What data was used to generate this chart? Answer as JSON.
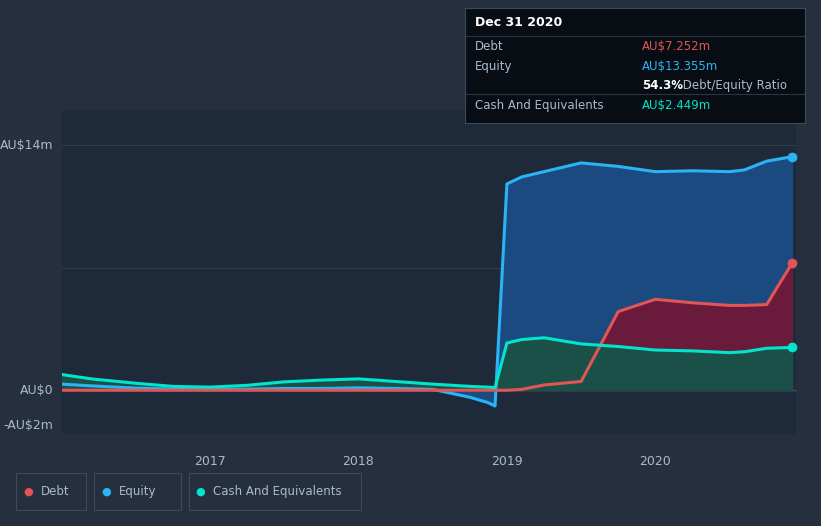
{
  "background_color": "#252f3e",
  "plot_bg_color": "#1e2a3a",
  "grid_color": "#3a4a5a",
  "x_ticks": [
    2017,
    2018,
    2019,
    2020
  ],
  "ylim": [
    -2.5,
    16
  ],
  "equity_color": "#2ab4f5",
  "debt_color": "#e05555",
  "cash_color": "#00e5cc",
  "equity_fill": "#1a4a80",
  "debt_fill": "#6a1a3a",
  "cash_fill": "#1a5048",
  "tooltip_bg": "#080d14",
  "tooltip_title": "Dec 31 2020",
  "tooltip_debt_label": "Debt",
  "tooltip_debt_value": "AU$7.252m",
  "tooltip_equity_label": "Equity",
  "tooltip_equity_value": "AU$13.355m",
  "tooltip_ratio_bold": "54.3%",
  "tooltip_ratio_rest": " Debt/Equity Ratio",
  "tooltip_cash_label": "Cash And Equivalents",
  "tooltip_cash_value": "AU$2.449m",
  "legend_debt": "Debt",
  "legend_equity": "Equity",
  "legend_cash": "Cash And Equivalents",
  "time": [
    2016.0,
    2016.2,
    2016.5,
    2016.75,
    2017.0,
    2017.25,
    2017.5,
    2017.75,
    2018.0,
    2018.25,
    2018.5,
    2018.75,
    2018.87,
    2018.92,
    2019.0,
    2019.1,
    2019.25,
    2019.5,
    2019.75,
    2020.0,
    2020.25,
    2020.5,
    2020.6,
    2020.75,
    2020.92
  ],
  "equity": [
    0.35,
    0.25,
    0.12,
    0.07,
    0.06,
    0.06,
    0.1,
    0.1,
    0.14,
    0.1,
    0.05,
    -0.4,
    -0.7,
    -0.9,
    11.8,
    12.2,
    12.5,
    13.0,
    12.8,
    12.5,
    12.55,
    12.5,
    12.6,
    13.1,
    13.355
  ],
  "debt": [
    0.0,
    0.0,
    0.0,
    0.0,
    0.0,
    0.0,
    0.0,
    0.0,
    0.0,
    0.0,
    0.0,
    0.0,
    0.0,
    0.0,
    0.0,
    0.05,
    0.3,
    0.5,
    4.5,
    5.2,
    5.0,
    4.85,
    4.85,
    4.9,
    7.252
  ],
  "cash": [
    0.9,
    0.65,
    0.4,
    0.22,
    0.18,
    0.28,
    0.48,
    0.58,
    0.65,
    0.5,
    0.35,
    0.22,
    0.18,
    0.15,
    2.7,
    2.9,
    3.0,
    2.65,
    2.5,
    2.3,
    2.25,
    2.15,
    2.2,
    2.4,
    2.449
  ]
}
